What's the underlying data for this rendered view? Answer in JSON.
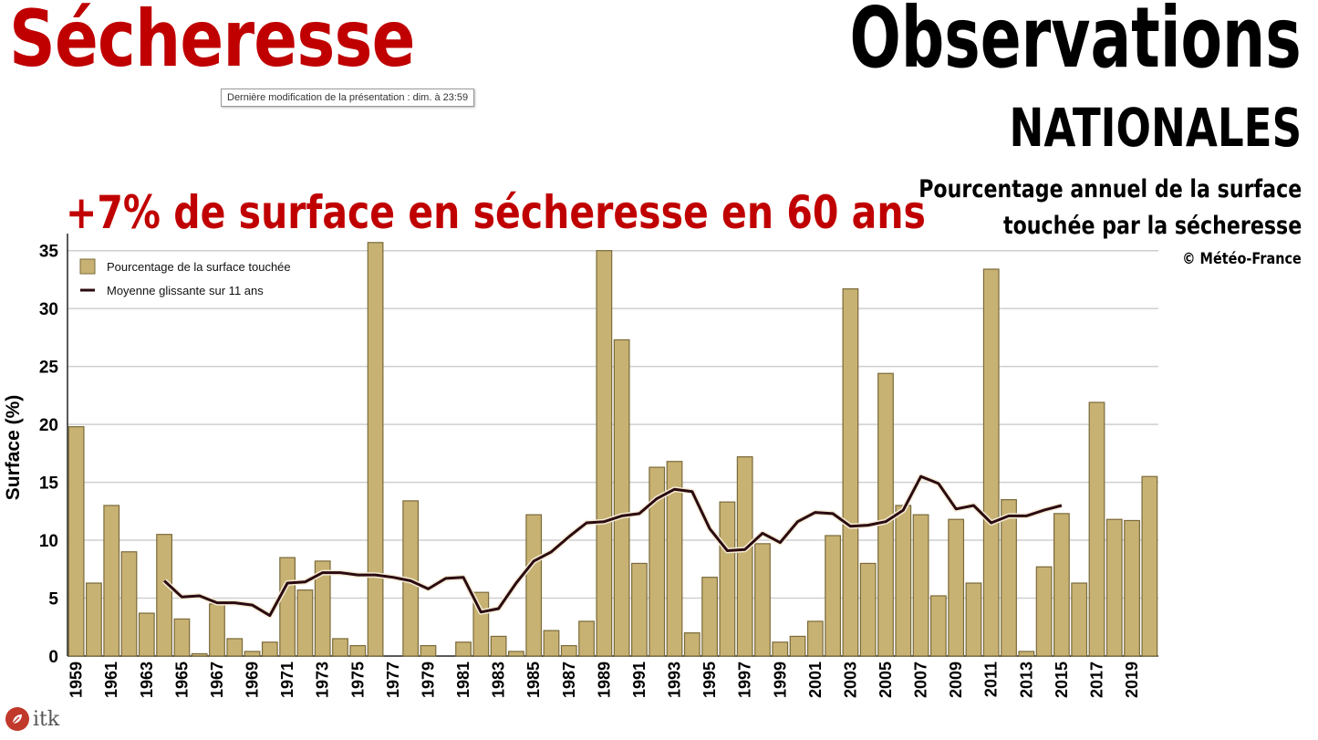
{
  "header": {
    "title_left": "Sécheresse",
    "tooltip": "Dernière modification de la présentation : dim. à 23:59",
    "title_right": "Observations",
    "subtitle_right": "NATIONALES",
    "description_line1": "Pourcentage annuel de la surface",
    "description_line2": "touchée par la sécheresse",
    "credit": "© Météo-France",
    "headline": "+7% de surface en sécheresse en 60 ans"
  },
  "logo": {
    "text": "itk",
    "icon": "itk-leaf-icon"
  },
  "colors": {
    "bar": "#c8b273",
    "bar_stroke": "#7a6a3a",
    "line": "#2b0a10",
    "accent_red": "#c00000"
  },
  "chart_data": {
    "type": "bar",
    "ylabel": "Surface (%)",
    "xlabel": "",
    "ylim": [
      0,
      36
    ],
    "yticks": [
      0,
      5,
      10,
      15,
      20,
      25,
      30,
      35
    ],
    "grid": true,
    "legend_position": "top-left",
    "x": [
      1959,
      1960,
      1961,
      1962,
      1963,
      1964,
      1965,
      1966,
      1967,
      1968,
      1969,
      1970,
      1971,
      1972,
      1973,
      1974,
      1975,
      1976,
      1977,
      1978,
      1979,
      1980,
      1981,
      1982,
      1983,
      1984,
      1985,
      1986,
      1987,
      1988,
      1989,
      1990,
      1991,
      1992,
      1993,
      1994,
      1995,
      1996,
      1997,
      1998,
      1999,
      2000,
      2001,
      2002,
      2003,
      2004,
      2005,
      2006,
      2007,
      2008,
      2009,
      2010,
      2011,
      2012,
      2013,
      2014,
      2015,
      2016,
      2017,
      2018,
      2019,
      2020
    ],
    "xticklabels": [
      "1959",
      "1961",
      "1963",
      "1965",
      "1967",
      "1969",
      "1971",
      "1973",
      "1975",
      "1977",
      "1979",
      "1981",
      "1983",
      "1985",
      "1987",
      "1989",
      "1991",
      "1993",
      "1995",
      "1997",
      "1999",
      "2001",
      "2003",
      "2005",
      "2007",
      "2009",
      "2011",
      "2013",
      "2015",
      "2017",
      "2019"
    ],
    "series": [
      {
        "name": "Pourcentage de la surface touchée",
        "type": "bar",
        "values": [
          19.8,
          6.3,
          13.0,
          9.0,
          3.7,
          10.5,
          3.2,
          0.2,
          4.5,
          1.5,
          0.4,
          1.2,
          8.5,
          5.7,
          8.2,
          1.5,
          0.9,
          35.7,
          0.0,
          13.4,
          0.9,
          0.0,
          1.2,
          5.5,
          1.7,
          0.4,
          12.2,
          2.2,
          0.9,
          3.0,
          35.0,
          27.3,
          8.0,
          16.3,
          16.8,
          2.0,
          6.8,
          13.3,
          17.2,
          9.7,
          1.2,
          1.7,
          3.0,
          10.4,
          31.7,
          8.0,
          24.4,
          13.0,
          12.2,
          5.2,
          11.8,
          6.3,
          33.4,
          13.5,
          0.4,
          7.7,
          12.3,
          6.3,
          21.9,
          11.8,
          11.7,
          15.5
        ]
      },
      {
        "name": "Moyenne glissante sur 11 ans",
        "type": "line",
        "x": [
          1964,
          1965,
          1966,
          1967,
          1968,
          1969,
          1970,
          1971,
          1972,
          1973,
          1974,
          1975,
          1976,
          1977,
          1978,
          1979,
          1980,
          1981,
          1982,
          1983,
          1984,
          1985,
          1986,
          1987,
          1988,
          1989,
          1990,
          1991,
          1992,
          1993,
          1994,
          1995,
          1996,
          1997,
          1998,
          1999,
          2000,
          2001,
          2002,
          2003,
          2004,
          2005,
          2006,
          2007,
          2008,
          2009,
          2010,
          2011,
          2012,
          2013,
          2014,
          2015
        ],
        "values": [
          6.5,
          5.1,
          5.2,
          4.6,
          4.6,
          4.4,
          3.5,
          6.3,
          6.4,
          7.2,
          7.2,
          7.0,
          7.0,
          6.8,
          6.5,
          5.8,
          6.7,
          6.8,
          3.8,
          4.1,
          6.3,
          8.2,
          9.0,
          10.3,
          11.5,
          11.6,
          12.1,
          12.3,
          13.6,
          14.4,
          14.2,
          11.0,
          9.1,
          9.2,
          10.6,
          9.8,
          11.6,
          12.4,
          12.3,
          11.2,
          11.3,
          11.6,
          12.6,
          15.5,
          14.9,
          12.7,
          13.0,
          11.5,
          12.1,
          12.1,
          12.6,
          13.0
        ]
      }
    ]
  }
}
